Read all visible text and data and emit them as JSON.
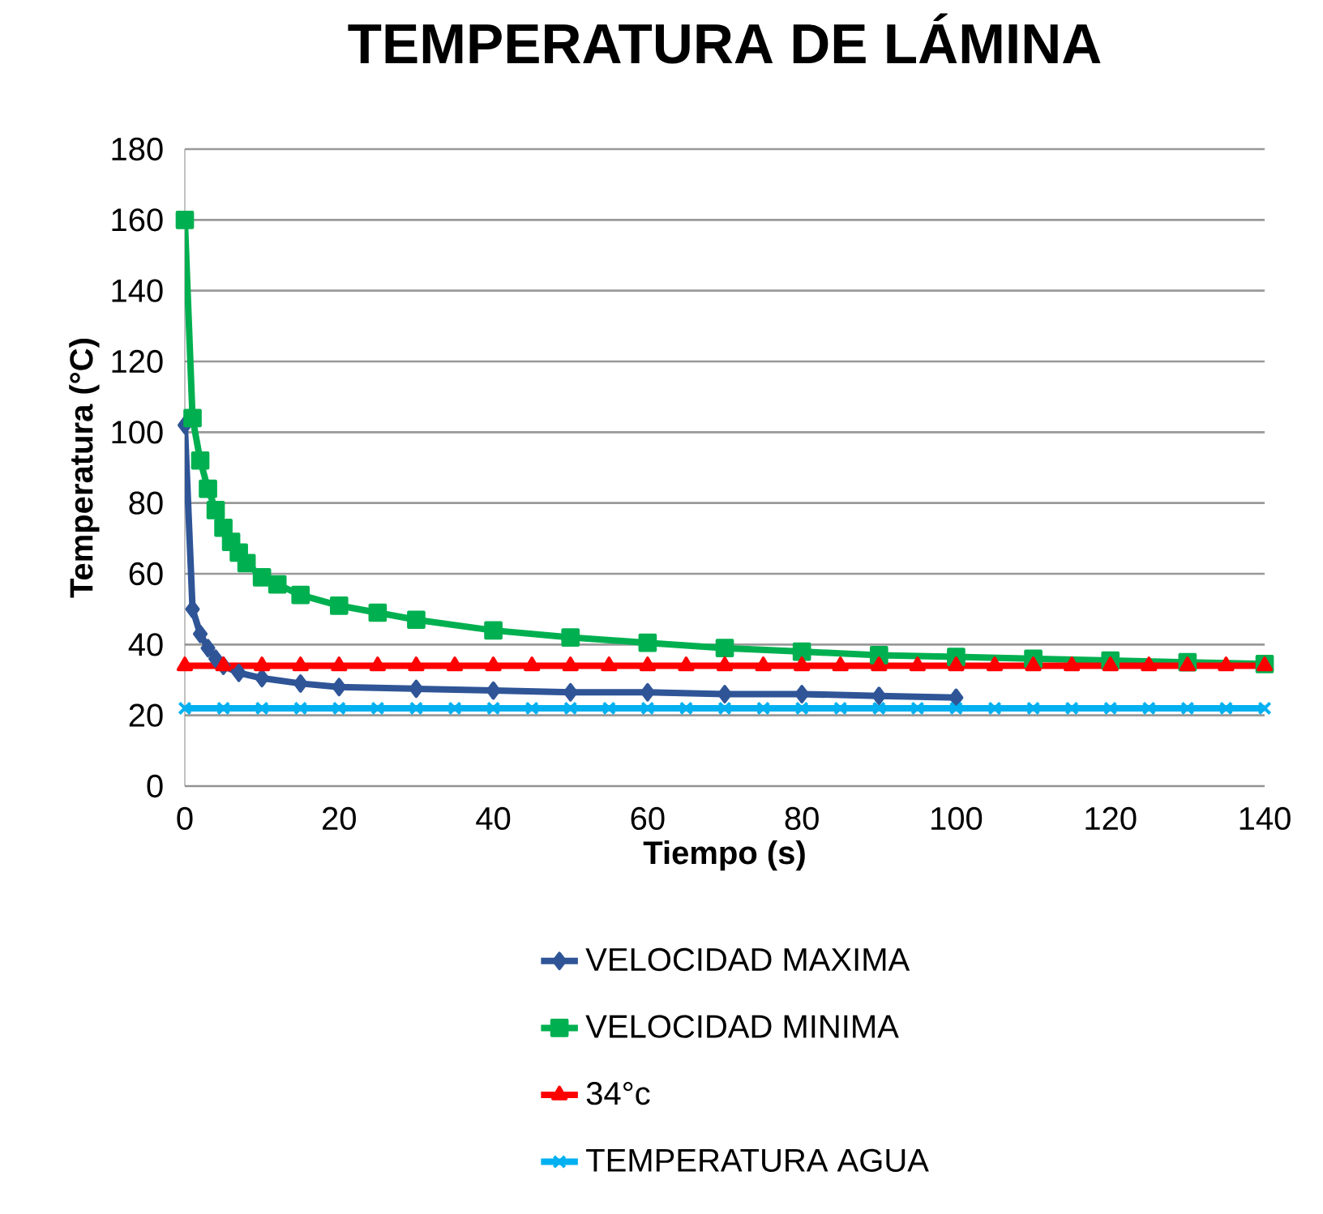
{
  "chart_data": {
    "type": "line",
    "title": "TEMPERATURA DE LÁMINA",
    "xlabel": "Tiempo (s)",
    "ylabel": "Temperatura (°C)",
    "xlim": [
      0,
      140
    ],
    "ylim": [
      0,
      180
    ],
    "xticks": [
      0,
      20,
      40,
      60,
      80,
      100,
      120,
      140
    ],
    "yticks": [
      0,
      20,
      40,
      60,
      80,
      100,
      120,
      140,
      160,
      180
    ],
    "grid": "y",
    "legend": "bottom",
    "line_style": "solid",
    "series": [
      {
        "name": "VELOCIDAD MAXIMA",
        "color": "#2f5597",
        "marker": "diamond",
        "x": [
          0,
          1,
          2,
          3,
          4,
          5,
          7,
          10,
          15,
          20,
          30,
          40,
          50,
          60,
          70,
          80,
          90,
          100
        ],
        "values": [
          102,
          50,
          43,
          39,
          36,
          34,
          32,
          30.5,
          29,
          28,
          27.5,
          27,
          26.5,
          26.5,
          26,
          26,
          25.5,
          25
        ]
      },
      {
        "name": "VELOCIDAD MINIMA",
        "color": "#00b050",
        "marker": "square",
        "x": [
          0,
          1,
          2,
          3,
          4,
          5,
          6,
          7,
          8,
          10,
          12,
          15,
          20,
          25,
          30,
          40,
          50,
          60,
          70,
          80,
          90,
          100,
          110,
          120,
          130,
          140
        ],
        "values": [
          160,
          104,
          92,
          84,
          78,
          73,
          69,
          66,
          63,
          59,
          57,
          54,
          51,
          49,
          47,
          44,
          42,
          40.5,
          39,
          38,
          37,
          36.5,
          36,
          35.5,
          35,
          34.5
        ]
      },
      {
        "name": "34°c",
        "color": "#ff0000",
        "marker": "triangle",
        "x": [
          0,
          5,
          10,
          15,
          20,
          25,
          30,
          35,
          40,
          45,
          50,
          55,
          60,
          65,
          70,
          75,
          80,
          85,
          90,
          95,
          100,
          105,
          110,
          115,
          120,
          125,
          130,
          135,
          140
        ],
        "values": [
          34,
          34,
          34,
          34,
          34,
          34,
          34,
          34,
          34,
          34,
          34,
          34,
          34,
          34,
          34,
          34,
          34,
          34,
          34,
          34,
          34,
          34,
          34,
          34,
          34,
          34,
          34,
          34,
          34
        ]
      },
      {
        "name": "TEMPERATURA AGUA",
        "color": "#00b0f0",
        "marker": "cross",
        "x": [
          0,
          5,
          10,
          15,
          20,
          25,
          30,
          35,
          40,
          45,
          50,
          55,
          60,
          65,
          70,
          75,
          80,
          85,
          90,
          95,
          100,
          105,
          110,
          115,
          120,
          125,
          130,
          135,
          140
        ],
        "values": [
          22,
          22,
          22,
          22,
          22,
          22,
          22,
          22,
          22,
          22,
          22,
          22,
          22,
          22,
          22,
          22,
          22,
          22,
          22,
          22,
          22,
          22,
          22,
          22,
          22,
          22,
          22,
          22,
          22
        ]
      }
    ]
  }
}
